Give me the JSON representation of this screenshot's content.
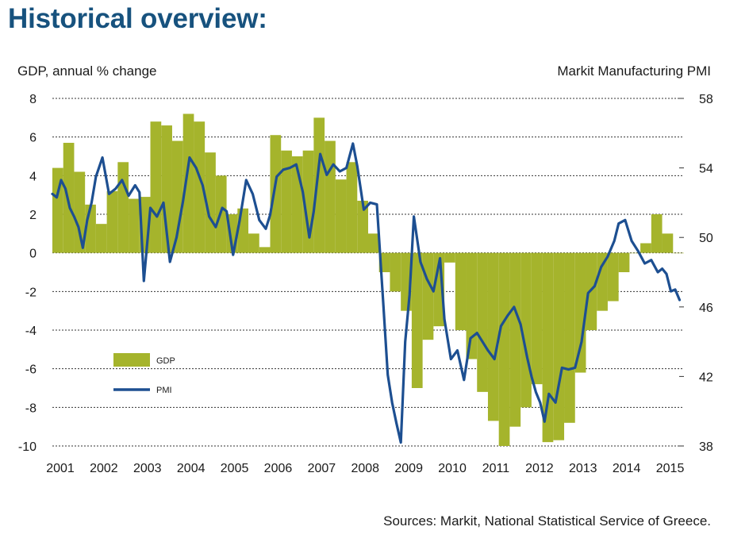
{
  "header": {
    "title": "Historical overview:"
  },
  "footer": {
    "source": "Sources: Markit, National Statistical Service of Greece."
  },
  "colors": {
    "gdp": "#a5b42c",
    "pmi": "#1d4f91",
    "grid": "#333333"
  },
  "chart_data": {
    "type": "bar+line",
    "ylabel_left": "GDP, annual % change",
    "ylabel_right": "Markit Manufacturing PMI",
    "ylim_left": [
      -10,
      8
    ],
    "ylim_right": [
      38,
      58
    ],
    "yticks_left": [
      8,
      6,
      4,
      2,
      0,
      -2,
      -4,
      -6,
      -8,
      -10
    ],
    "yticks_right": [
      58,
      54,
      50,
      46,
      42,
      38
    ],
    "xlim": [
      2001,
      2015.5
    ],
    "xticks": [
      "2001",
      "2002",
      "2003",
      "2004",
      "2005",
      "2006",
      "2007",
      "2008",
      "2009",
      "2010",
      "2011",
      "2012",
      "2013",
      "2014",
      "2015"
    ],
    "grid": "horizontal dashed",
    "legend": {
      "placement": "lower-left",
      "entries": [
        "GDP",
        "PMI"
      ]
    },
    "series": [
      {
        "name": "GDP",
        "kind": "bar",
        "x": [
          2001.0,
          2001.25,
          2001.5,
          2001.75,
          2002.0,
          2002.25,
          2002.5,
          2002.75,
          2003.0,
          2003.25,
          2003.5,
          2003.75,
          2004.0,
          2004.25,
          2004.5,
          2004.75,
          2005.0,
          2005.25,
          2005.5,
          2005.75,
          2006.0,
          2006.25,
          2006.5,
          2006.75,
          2007.0,
          2007.25,
          2007.5,
          2007.75,
          2008.0,
          2008.25,
          2008.5,
          2008.75,
          2009.0,
          2009.25,
          2009.5,
          2009.75,
          2010.0,
          2010.25,
          2010.5,
          2010.75,
          2011.0,
          2011.25,
          2011.5,
          2011.75,
          2012.0,
          2012.25,
          2012.5,
          2012.75,
          2013.0,
          2013.25,
          2013.5,
          2013.75,
          2014.0,
          2014.25,
          2014.5,
          2014.75,
          2015.0,
          2015.25
        ],
        "values": [
          4.4,
          5.7,
          4.2,
          2.5,
          1.5,
          3.2,
          4.7,
          2.8,
          2.9,
          6.8,
          6.6,
          5.8,
          7.2,
          6.8,
          5.2,
          4.0,
          2.0,
          2.3,
          1.0,
          0.3,
          6.1,
          5.3,
          5.0,
          5.3,
          7.0,
          5.8,
          3.8,
          4.7,
          2.7,
          1.0,
          -1.0,
          -2.0,
          -3.0,
          -7.0,
          -4.5,
          -3.8,
          -0.5,
          -4.0,
          -5.5,
          -7.2,
          -8.7,
          -10.0,
          -9.0,
          -8.0,
          -6.8,
          -9.8,
          -9.7,
          -8.8,
          -6.2,
          -4.0,
          -3.0,
          -2.5,
          -1.0,
          0.0,
          0.5,
          2.0,
          1.0,
          0.0
        ]
      },
      {
        "name": "PMI",
        "kind": "line",
        "x": [
          2001.0,
          2001.1,
          2001.2,
          2001.3,
          2001.4,
          2001.5,
          2001.6,
          2001.7,
          2001.8,
          2001.9,
          2002.0,
          2002.15,
          2002.3,
          2002.45,
          2002.6,
          2002.75,
          2002.9,
          2003.0,
          2003.1,
          2003.25,
          2003.4,
          2003.55,
          2003.7,
          2003.85,
          2004.0,
          2004.15,
          2004.3,
          2004.45,
          2004.6,
          2004.75,
          2004.9,
          2005.0,
          2005.15,
          2005.3,
          2005.45,
          2005.6,
          2005.75,
          2005.9,
          2006.0,
          2006.15,
          2006.3,
          2006.45,
          2006.6,
          2006.75,
          2006.9,
          2007.0,
          2007.15,
          2007.3,
          2007.45,
          2007.6,
          2007.75,
          2007.9,
          2008.0,
          2008.15,
          2008.3,
          2008.45,
          2008.6,
          2008.7,
          2008.8,
          2008.9,
          2009.0,
          2009.1,
          2009.2,
          2009.3,
          2009.45,
          2009.6,
          2009.75,
          2009.9,
          2010.0,
          2010.15,
          2010.3,
          2010.45,
          2010.6,
          2010.75,
          2010.9,
          2011.0,
          2011.15,
          2011.3,
          2011.45,
          2011.6,
          2011.75,
          2011.9,
          2012.0,
          2012.1,
          2012.2,
          2012.3,
          2012.4,
          2012.55,
          2012.7,
          2012.85,
          2013.0,
          2013.15,
          2013.3,
          2013.45,
          2013.6,
          2013.75,
          2013.9,
          2014.0,
          2014.15,
          2014.3,
          2014.45,
          2014.6,
          2014.75,
          2014.9,
          2015.0,
          2015.1,
          2015.2,
          2015.3,
          2015.4
        ],
        "values": [
          52.5,
          52.3,
          53.3,
          52.8,
          51.7,
          51.2,
          50.6,
          49.4,
          51.0,
          52.0,
          53.5,
          54.6,
          52.5,
          52.8,
          53.3,
          52.4,
          53.0,
          52.6,
          47.5,
          51.7,
          51.2,
          52.0,
          48.6,
          50.0,
          52.1,
          54.6,
          54.0,
          53.0,
          51.2,
          50.6,
          51.7,
          51.5,
          49.0,
          51.0,
          53.3,
          52.5,
          51.0,
          50.5,
          51.3,
          53.5,
          53.9,
          54.0,
          54.2,
          52.6,
          50.0,
          51.5,
          54.8,
          53.6,
          54.2,
          53.8,
          54.0,
          55.4,
          54.1,
          51.6,
          52.0,
          51.9,
          46.1,
          42.1,
          40.5,
          39.3,
          38.2,
          44.0,
          46.7,
          51.2,
          48.6,
          47.6,
          46.9,
          48.8,
          45.3,
          43.0,
          43.5,
          41.8,
          44.2,
          44.5,
          43.9,
          43.5,
          43.0,
          44.9,
          45.5,
          46.0,
          45.0,
          43.1,
          42.0,
          41.1,
          40.5,
          39.4,
          41.0,
          40.5,
          42.5,
          42.4,
          42.5,
          44.0,
          46.8,
          47.2,
          48.3,
          48.9,
          49.8,
          50.8,
          51.0,
          49.8,
          49.2,
          48.5,
          48.7,
          48.0,
          48.2,
          47.9,
          46.9,
          47.0,
          46.4
        ]
      }
    ]
  }
}
